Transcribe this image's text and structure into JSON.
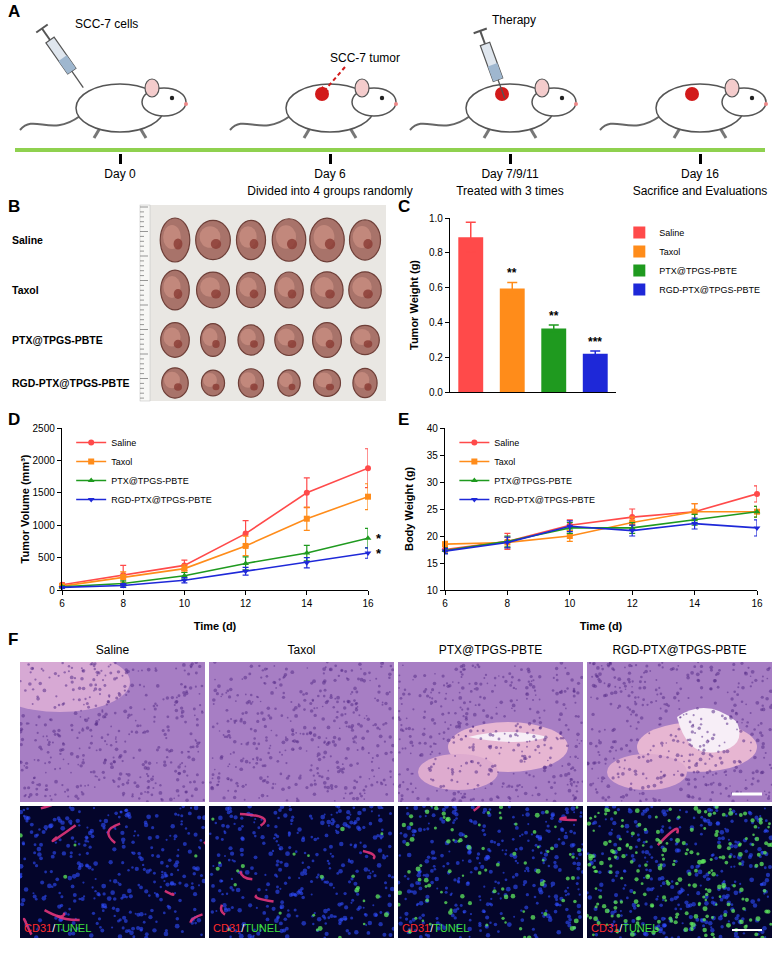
{
  "schematic": {
    "panel": "A",
    "steps": [
      {
        "day": "Day 0",
        "event": "SCC-7 cells"
      },
      {
        "day": "Day 6",
        "caption": "Divided into 4 groups randomly",
        "event": "SCC-7 tumor"
      },
      {
        "day": "Day 7/9/11",
        "caption": "Treated with 3 times",
        "event": "Therapy"
      },
      {
        "day": "Day 16",
        "caption": "Sacrifice and Evaluations"
      }
    ]
  },
  "photo": {
    "panel": "B",
    "groups": [
      "Saline",
      "Taxol",
      "PTX@TPGS-PBTE",
      "RGD-PTX@TPGS-PBTE"
    ],
    "tumors_per_group": 6
  },
  "chart_data": [
    {
      "panel": "C",
      "type": "bar",
      "ylabel": "Tumor Weight (g)",
      "categories": [
        "Saline",
        "Taxol",
        "PTX@TPGS-PBTE",
        "RGD-PTX@TPGS-PBTE"
      ],
      "values": [
        0.89,
        0.595,
        0.365,
        0.22
      ],
      "errors": [
        0.085,
        0.035,
        0.02,
        0.015
      ],
      "colors": [
        "#ff4a4a",
        "#ff8c1a",
        "#1f9a1f",
        "#1e28d8"
      ],
      "annotations": [
        {
          "text": "**",
          "category": "Taxol"
        },
        {
          "text": "**",
          "category": "PTX@TPGS-PBTE"
        },
        {
          "text": "***",
          "category": "RGD-PTX@TPGS-PBTE"
        }
      ],
      "ylim": [
        0,
        1.0
      ],
      "yticks": [
        {
          "value": 0,
          "label": "0.0"
        },
        0.2,
        0.4,
        0.6,
        0.8,
        {
          "value": 1.0,
          "label": "1.0"
        }
      ],
      "legend": "right",
      "tick_labels": "y",
      "grid": false
    },
    {
      "panel": "D",
      "type": "line",
      "xlabel": "Time (d)",
      "ylabel": "Tumor Volume (mm³)",
      "x": [
        6,
        8,
        10,
        12,
        14,
        16
      ],
      "series": [
        {
          "name": "Saline",
          "color": "#ff4a4a",
          "marker": "circle",
          "values": [
            80,
            230,
            380,
            870,
            1500,
            1880
          ],
          "errors": [
            30,
            150,
            80,
            200,
            230,
            300
          ]
        },
        {
          "name": "Taxol",
          "color": "#ff8c1a",
          "marker": "square",
          "values": [
            60,
            200,
            330,
            680,
            1100,
            1440
          ],
          "errors": [
            20,
            80,
            60,
            150,
            180,
            200
          ]
        },
        {
          "name": "PTX@TPGS-PBTE",
          "color": "#1f9a1f",
          "marker": "triangle-up",
          "values": [
            50,
            100,
            220,
            410,
            570,
            800
          ],
          "errors": [
            15,
            40,
            50,
            100,
            120,
            150
          ]
        },
        {
          "name": "RGD-PTX@TPGS-PBTE",
          "color": "#1e28d8",
          "marker": "triangle-down",
          "values": [
            40,
            70,
            150,
            290,
            420,
            570
          ],
          "errors": [
            10,
            30,
            40,
            60,
            80,
            80
          ]
        }
      ],
      "annotations": [
        {
          "text": "*",
          "series": "PTX@TPGS-PBTE",
          "x": 16
        },
        {
          "text": "*",
          "series": "RGD-PTX@TPGS-PBTE",
          "x": 16
        }
      ],
      "xlim": [
        6,
        16
      ],
      "xticks": [
        6,
        8,
        10,
        12,
        14,
        16
      ],
      "ylim": [
        0,
        2500
      ],
      "yticks": [
        0,
        500,
        1000,
        1500,
        2000,
        2500
      ],
      "legend": "top left",
      "grid": false
    },
    {
      "panel": "E",
      "type": "line",
      "xlabel": "Time (d)",
      "ylabel": "Body Weight (g)",
      "x": [
        6,
        8,
        10,
        12,
        14,
        16
      ],
      "series": [
        {
          "name": "Saline",
          "color": "#ff4a4a",
          "marker": "circle",
          "values": [
            17.5,
            19,
            22,
            23.5,
            24.5,
            27.8
          ],
          "errors": [
            0.5,
            1.5,
            1,
            1.5,
            1.5,
            1.5
          ]
        },
        {
          "name": "Taxol",
          "color": "#ff8c1a",
          "marker": "square",
          "values": [
            18.5,
            18.8,
            20,
            22.5,
            24.5,
            24.5
          ],
          "errors": [
            0.5,
            1,
            1,
            1,
            1.5,
            1
          ]
        },
        {
          "name": "PTX@TPGS-PBTE",
          "color": "#1f9a1f",
          "marker": "triangle-up",
          "values": [
            17.3,
            19,
            21.5,
            21.5,
            23,
            24.5
          ],
          "errors": [
            0.5,
            1,
            1,
            1,
            1,
            1
          ]
        },
        {
          "name": "RGD-PTX@TPGS-PBTE",
          "color": "#1e28d8",
          "marker": "triangle-down",
          "values": [
            17.2,
            18.8,
            21.8,
            21,
            22.3,
            21.5
          ],
          "errors": [
            0.5,
            1,
            1,
            1,
            1,
            1.5
          ]
        }
      ],
      "xlim": [
        6,
        16
      ],
      "xticks": [
        6,
        8,
        10,
        12,
        14,
        16
      ],
      "ylim": [
        10,
        40
      ],
      "yticks": [
        10,
        15,
        20,
        25,
        30,
        35,
        40
      ],
      "legend": "top left",
      "grid": false
    }
  ],
  "histology": {
    "panel": "F",
    "groups": [
      "Saline",
      "Taxol",
      "PTX@TPGS-PBTE",
      "RGD-PTX@TPGS-PBTE"
    ],
    "stain_labels": [
      {
        "text": "CD31",
        "color": "#ff2a2a"
      },
      {
        "text": "TUNEL",
        "color": "#3ee03e"
      }
    ],
    "separator": "/"
  }
}
